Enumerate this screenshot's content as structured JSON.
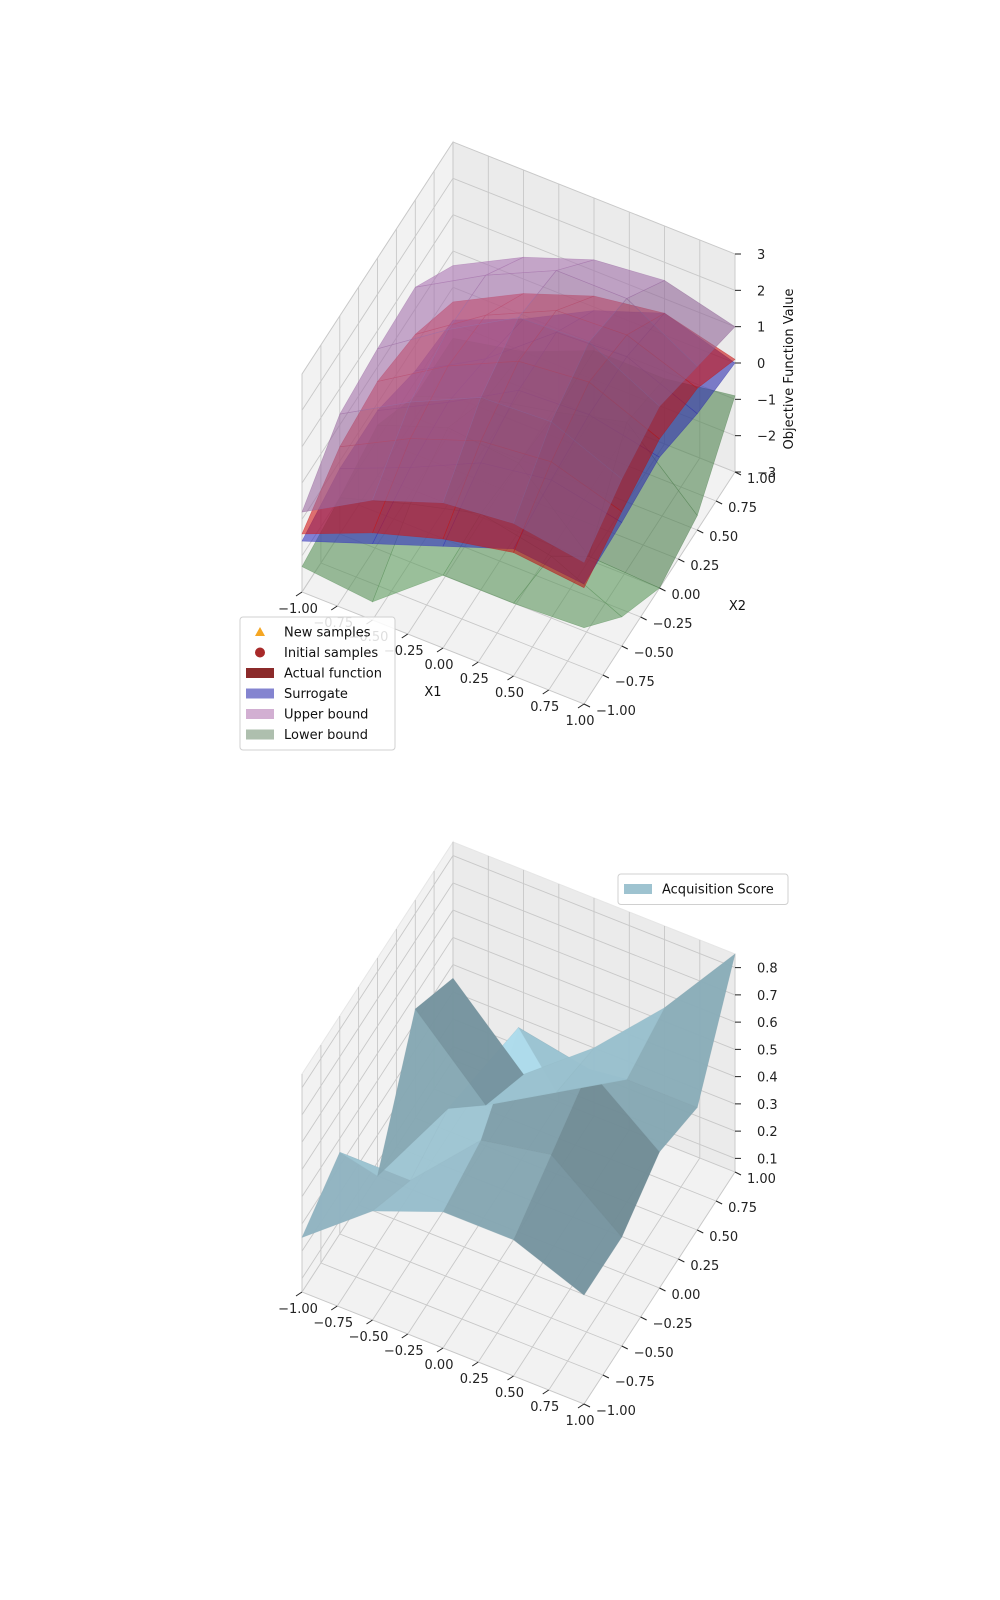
{
  "chart_data": [
    {
      "type": "surface3d",
      "title": "",
      "xlabel": "X1",
      "ylabel": "X2",
      "zlabel": "Objective Function Value",
      "xlim": [
        -1,
        1
      ],
      "ylim": [
        -1,
        1
      ],
      "zlim": [
        -3,
        3
      ],
      "x_ticks": [
        "−1.00",
        "−0.75",
        "−0.50",
        "−0.25",
        "0.00",
        "0.25",
        "0.50",
        "0.75",
        "1.00"
      ],
      "y_ticks": [
        "−1.00",
        "−0.75",
        "−0.50",
        "−0.25",
        "0.00",
        "0.25",
        "0.50",
        "0.75",
        "1.00"
      ],
      "z_ticks": [
        "−3",
        "−2",
        "−1",
        "0",
        "1",
        "2",
        "3"
      ],
      "grid": true,
      "legend_position": "lower-left",
      "legend": [
        {
          "label": "New samples",
          "marker": "triangle",
          "color": "#f5a623"
        },
        {
          "label": "Initial samples",
          "marker": "circle",
          "color": "#a82a2a"
        },
        {
          "label": "Actual function",
          "marker": "patch",
          "color": "#8b2a2a"
        },
        {
          "label": "Surrogate",
          "marker": "patch",
          "color": "#8484d0"
        },
        {
          "label": "Upper bound",
          "marker": "patch",
          "color": "#d2afd2"
        },
        {
          "label": "Lower bound",
          "marker": "patch",
          "color": "#aebfae"
        }
      ],
      "grid_x": [
        -1,
        -0.5,
        0,
        0.5,
        1
      ],
      "grid_y": [
        -1,
        -0.5,
        0,
        0.5,
        1
      ],
      "series": [
        {
          "name": "Lower bound",
          "color": "#6aae6a",
          "z": [
            [
              -2.3,
              -2.5,
              -1.0,
              -1.0,
              -0.9
            ],
            [
              -2.0,
              -1.4,
              -0.9,
              -1.3,
              -2.2
            ],
            [
              -1.6,
              -0.9,
              -1.1,
              -2.9,
              -3.0
            ],
            [
              -2.4,
              -1.7,
              -1.3,
              -0.8,
              -2.6
            ],
            [
              -2.4,
              -2.0,
              -1.2,
              -1.2,
              -0.9
            ]
          ]
        },
        {
          "name": "Surrogate",
          "color": "#3a3ad8",
          "z": [
            [
              -1.6,
              -0.9,
              -0.2,
              0.5,
              0.3
            ],
            [
              -1.2,
              -0.4,
              0.5,
              0.8,
              0.4
            ],
            [
              -1.2,
              -0.2,
              0.9,
              1.0,
              0.6
            ],
            [
              -1.7,
              -0.6,
              0.9,
              1.0,
              0.2
            ],
            [
              -1.9,
              -1.1,
              -0.1,
              0.6,
              0.0
            ]
          ]
        },
        {
          "name": "Actual function",
          "color": "#ee1a1a",
          "z": [
            [
              -1.4,
              -0.6,
              0.0,
              0.4,
              0.2
            ],
            [
              -0.6,
              0.4,
              1.1,
              1.3,
              0.7
            ],
            [
              -0.4,
              0.8,
              1.7,
              1.9,
              1.1
            ],
            [
              -0.7,
              0.6,
              1.5,
              1.6,
              0.9
            ],
            [
              -1.4,
              -0.4,
              0.3,
              0.6,
              0.1
            ]
          ]
        },
        {
          "name": "Upper bound",
          "color": "#b07ab8",
          "z": [
            [
              -0.8,
              0.3,
              1.0,
              1.2,
              0.9
            ],
            [
              0.3,
              1.4,
              2.3,
              2.4,
              1.6
            ],
            [
              0.5,
              1.8,
              2.9,
              3.0,
              2.0
            ],
            [
              0.6,
              1.7,
              2.6,
              2.6,
              1.5
            ],
            [
              -0.4,
              0.6,
              1.3,
              1.5,
              1.0
            ]
          ]
        }
      ]
    },
    {
      "type": "surface3d",
      "title": "",
      "xlim": [
        -1,
        1
      ],
      "ylim": [
        -1,
        1
      ],
      "zlim": [
        0.05,
        0.85
      ],
      "x_ticks": [
        "−1.00",
        "−0.75",
        "−0.50",
        "−0.25",
        "0.00",
        "0.25",
        "0.50",
        "0.75",
        "1.00"
      ],
      "y_ticks": [
        "−1.00",
        "−0.75",
        "−0.50",
        "−0.25",
        "0.00",
        "0.25",
        "0.50",
        "0.75",
        "1.00"
      ],
      "z_ticks": [
        "0.1",
        "0.2",
        "0.3",
        "0.4",
        "0.5",
        "0.6",
        "0.7",
        "0.8"
      ],
      "grid": true,
      "legend_position": "top-right",
      "legend": [
        {
          "label": "Acquisition Score",
          "marker": "patch",
          "color": "#9ec3d0"
        }
      ],
      "grid_x": [
        -1,
        -0.5,
        0,
        0.5,
        1
      ],
      "grid_y": [
        -1,
        -0.5,
        0,
        0.5,
        1
      ],
      "series": [
        {
          "name": "Acquisition Score",
          "color": "#9ec6d4",
          "z": [
            [
              0.25,
              0.45,
              0.55,
              0.55,
              0.45
            ],
            [
              0.35,
              0.35,
              0.6,
              0.65,
              0.45
            ],
            [
              0.05,
              0.4,
              0.8,
              0.75,
              0.55
            ],
            [
              0.45,
              0.2,
              0.35,
              0.5,
              0.5
            ],
            [
              0.35,
              0.1,
              0.3,
              0.55,
              0.85
            ]
          ]
        }
      ]
    }
  ]
}
